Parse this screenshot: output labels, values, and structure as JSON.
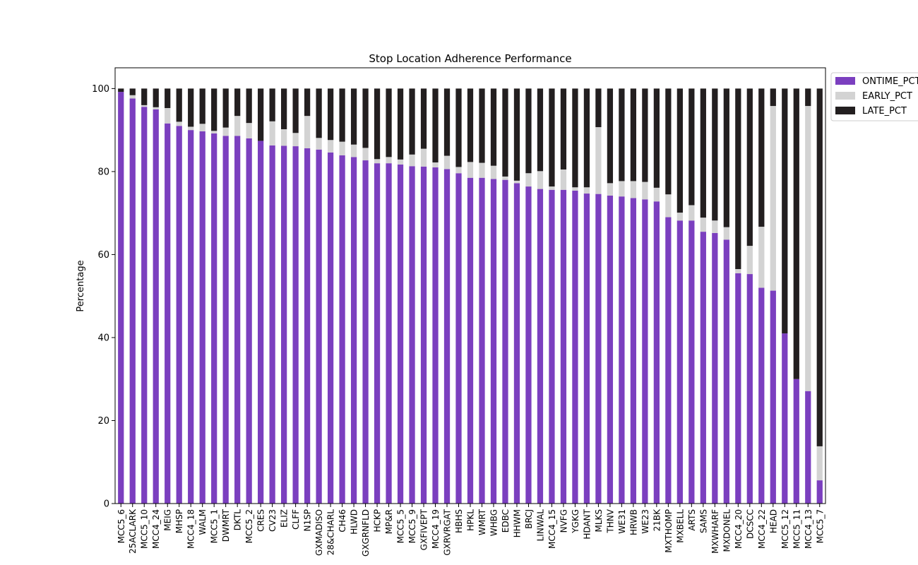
{
  "chart_data": {
    "type": "bar",
    "stacked": true,
    "title": "Stop Location Adherence Performance",
    "xlabel": "",
    "ylabel": "Percentage",
    "ylim": [
      0,
      105
    ],
    "yticks": [
      0,
      20,
      40,
      60,
      80,
      100
    ],
    "grid": false,
    "legend_position": "upper right, outside plot",
    "categories": [
      "MCC5_6",
      "25ACLARK",
      "MCC5_10",
      "MCC4_24",
      "MEIG",
      "MHSP",
      "MCC4_18",
      "WALM",
      "MCC5_1",
      "DWMRT",
      "DKTL",
      "MCC5_2",
      "CRES",
      "CV23",
      "ELIZ",
      "CLFF",
      "N1SP",
      "GXMADISO",
      "28&CHARL",
      "CH46",
      "HLWD",
      "GXGRNFLD",
      "HCKP",
      "MP&R",
      "MCC5_5",
      "MCC5_9",
      "GXFIVEPT",
      "MCC4_19",
      "GXRVRGAT",
      "HBHS",
      "HPKL",
      "WMRT",
      "WHBG",
      "EDBC",
      "HHWM",
      "BRCJ",
      "LINWAL",
      "MCC4_15",
      "NVFG",
      "YGKG",
      "HDANT",
      "MLKS",
      "THNV",
      "WE31",
      "HRWB",
      "WE23",
      "21BK",
      "MXTHOMP",
      "MXBELL",
      "ARTS",
      "SAMS",
      "MXWHARF",
      "MXDONEL",
      "MCC4_20",
      "DCSCC",
      "MCC4_22",
      "HEAD",
      "MCC5_12",
      "MCC5_11",
      "MCC4_13",
      "MCC5_7"
    ],
    "series": [
      {
        "name": "ONTIME_PCT",
        "color": "#7b3fbf",
        "values": [
          99.2,
          97.6,
          95.6,
          95.0,
          91.6,
          91.0,
          90.0,
          89.7,
          89.2,
          88.6,
          88.6,
          88.0,
          87.4,
          86.3,
          86.2,
          86.1,
          85.6,
          85.3,
          84.6,
          83.9,
          83.5,
          82.7,
          82.0,
          82.0,
          81.7,
          81.3,
          81.2,
          81.0,
          80.6,
          79.6,
          78.5,
          78.5,
          78.2,
          78.0,
          77.2,
          76.4,
          75.8,
          75.6,
          75.6,
          75.4,
          74.7,
          74.6,
          74.2,
          74.0,
          73.6,
          73.3,
          72.8,
          69.0,
          68.2,
          68.2,
          65.5,
          65.2,
          63.6,
          55.5,
          55.3,
          52.0,
          51.3,
          41.0,
          30.0,
          27.1,
          5.6
        ]
      },
      {
        "name": "EARLY_PCT",
        "color": "#d3d3d3",
        "values": [
          0.0,
          0.8,
          0.4,
          0.5,
          3.7,
          1.0,
          0.8,
          1.8,
          0.6,
          2.0,
          4.8,
          3.7,
          0.0,
          5.8,
          4.0,
          3.2,
          7.8,
          2.8,
          3.0,
          3.3,
          3.0,
          3.0,
          1.0,
          1.5,
          1.2,
          2.8,
          4.3,
          1.2,
          3.2,
          1.5,
          3.8,
          3.6,
          3.2,
          0.8,
          0.6,
          3.2,
          4.3,
          0.8,
          4.9,
          0.8,
          1.5,
          16.1,
          3.0,
          3.7,
          4.1,
          4.2,
          3.3,
          5.5,
          1.9,
          3.7,
          3.4,
          3.0,
          3.0,
          1.0,
          6.8,
          14.7,
          44.5,
          0.0,
          0.0,
          68.7,
          8.2
        ]
      },
      {
        "name": "LATE_PCT",
        "color": "#231f20",
        "values": [
          0.8,
          1.6,
          4.0,
          4.5,
          4.7,
          8.0,
          9.2,
          8.5,
          10.2,
          9.4,
          6.6,
          8.3,
          12.6,
          7.9,
          9.8,
          10.7,
          6.6,
          11.9,
          12.4,
          12.8,
          13.5,
          14.3,
          17.0,
          16.5,
          17.1,
          15.9,
          14.5,
          17.8,
          16.2,
          18.9,
          17.7,
          17.9,
          18.6,
          21.2,
          22.2,
          20.4,
          19.9,
          23.6,
          19.5,
          23.8,
          23.8,
          9.3,
          22.8,
          22.3,
          22.3,
          22.5,
          23.9,
          25.5,
          29.9,
          28.1,
          31.1,
          31.8,
          33.4,
          43.5,
          37.9,
          33.3,
          4.2,
          59.0,
          70.0,
          4.2,
          86.2
        ]
      }
    ]
  }
}
